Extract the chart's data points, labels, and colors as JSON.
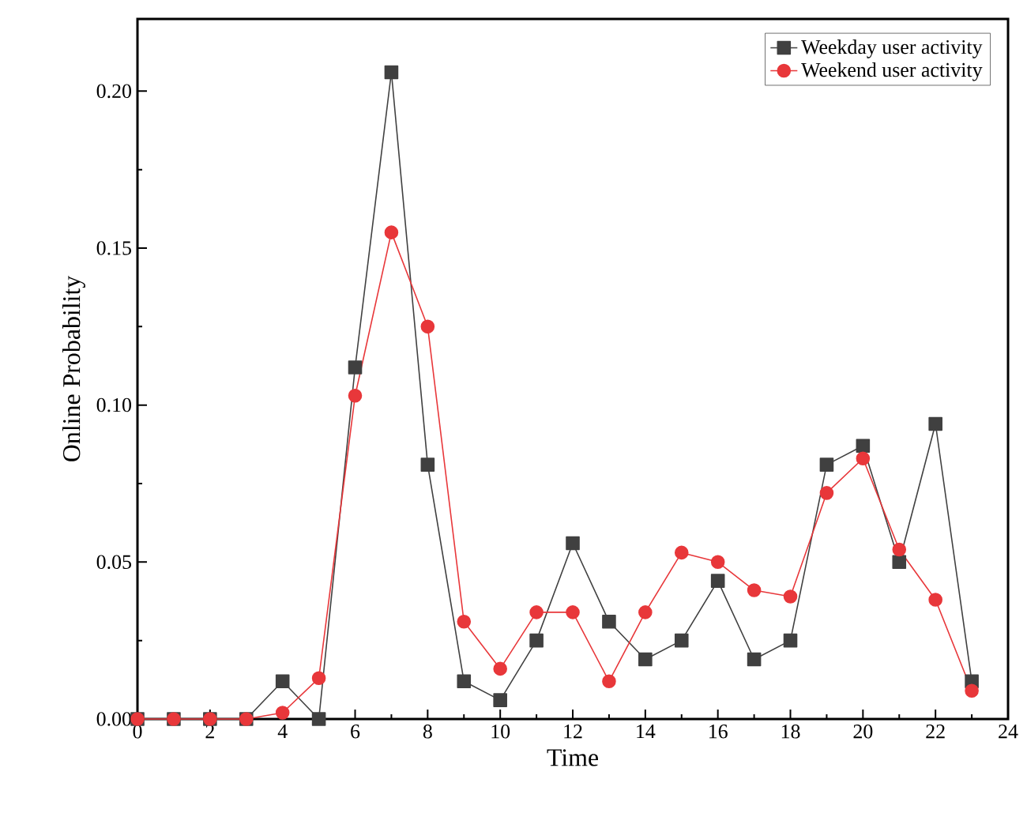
{
  "chart_data": {
    "type": "line",
    "xlabel": "Time",
    "ylabel": "Online Probability",
    "x": [
      0,
      1,
      2,
      3,
      4,
      5,
      6,
      7,
      8,
      9,
      10,
      11,
      12,
      13,
      14,
      15,
      16,
      17,
      18,
      19,
      20,
      21,
      22,
      23
    ],
    "series": [
      {
        "name": "Weekday user activity",
        "color": "#404040",
        "marker": "square",
        "values": [
          0,
          0,
          0,
          0,
          0.012,
          0,
          0.112,
          0.206,
          0.081,
          0.012,
          0.006,
          0.025,
          0.056,
          0.031,
          0.019,
          0.025,
          0.044,
          0.019,
          0.025,
          0.081,
          0.087,
          0.05,
          0.094,
          0.012
        ]
      },
      {
        "name": "Weekend user activity",
        "color": "#e8373a",
        "marker": "circle",
        "values": [
          0,
          0,
          0,
          0,
          0.002,
          0.013,
          0.103,
          0.155,
          0.125,
          0.031,
          0.016,
          0.034,
          0.034,
          0.012,
          0.034,
          0.053,
          0.05,
          0.041,
          0.039,
          0.072,
          0.083,
          0.054,
          0.038,
          0.009
        ]
      }
    ],
    "xlim": [
      0,
      24
    ],
    "xticks": [
      0,
      2,
      4,
      6,
      8,
      10,
      12,
      14,
      16,
      18,
      20,
      22,
      24
    ],
    "ylim": [
      0,
      0.223
    ],
    "yticks": [
      {
        "value": 0,
        "label": "0.00"
      },
      {
        "value": 0.05,
        "label": "0.05"
      },
      {
        "value": 0.1,
        "label": "0.10"
      },
      {
        "value": 0.15,
        "label": "0.15"
      },
      {
        "value": 0.2,
        "label": "0.20"
      }
    ],
    "grid": false,
    "legend": "top right",
    "line_style": "solid"
  }
}
